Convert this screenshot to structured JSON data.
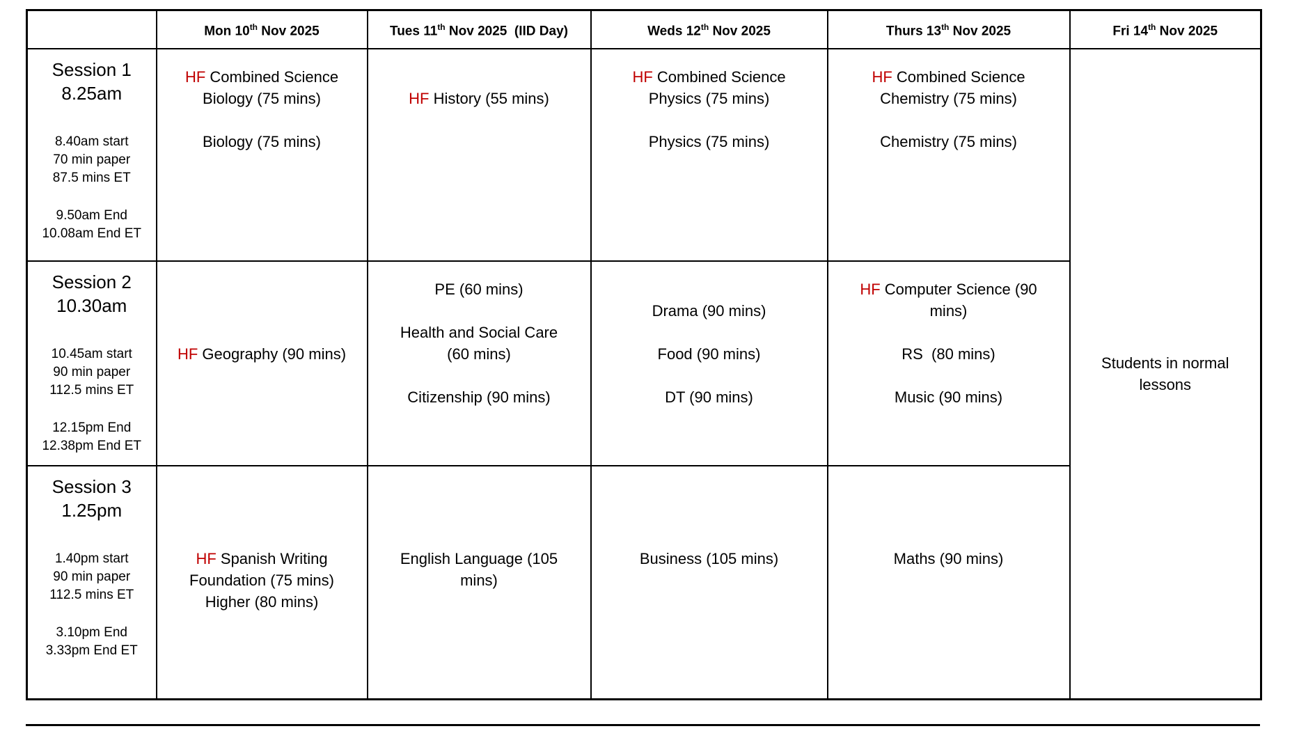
{
  "hf_color": "#C00000",
  "hf_label": "HF",
  "header": {
    "days": [
      {
        "key": "mon",
        "prefix": "Mon 10",
        "sup": "th",
        "suffix": " Nov 2025"
      },
      {
        "key": "tue",
        "prefix": "Tues 11",
        "sup": "th",
        "suffix": " Nov 2025  (IID Day)"
      },
      {
        "key": "wed",
        "prefix": "Weds 12",
        "sup": "th",
        "suffix": " Nov 2025"
      },
      {
        "key": "thu",
        "prefix": "Thurs 13",
        "sup": "th",
        "suffix": " Nov 2025"
      },
      {
        "key": "fri",
        "prefix": "Fri 14",
        "sup": "th",
        "suffix": " Nov 2025"
      }
    ]
  },
  "sessions": [
    {
      "name": "Session 1",
      "start_time": "8.25am",
      "details": [
        "8.40am start",
        "70 min paper",
        "87.5 mins ET"
      ],
      "end_details": [
        "9.50am End",
        "10.08am End ET"
      ],
      "exams": {
        "mon": [
          {
            "hf": true,
            "text": "Combined Science"
          },
          {
            "text": "Biology (75 mins)"
          },
          "",
          {
            "text": "Biology (75 mins)"
          }
        ],
        "tue": [
          "",
          {
            "hf": true,
            "text": "History (55 mins)"
          }
        ],
        "wed": [
          {
            "hf": true,
            "text": "Combined Science"
          },
          {
            "text": "Physics (75 mins)"
          },
          "",
          {
            "text": "Physics (75 mins)"
          }
        ],
        "thu": [
          {
            "hf": true,
            "text": "Combined Science"
          },
          {
            "text": "Chemistry (75 mins)"
          },
          "",
          {
            "text": "Chemistry (75 mins)"
          }
        ]
      }
    },
    {
      "name": "Session 2",
      "start_time": "10.30am",
      "details": [
        "10.45am start",
        "90 min paper",
        "112.5 mins ET"
      ],
      "end_details": [
        "12.15pm End",
        "12.38pm End ET"
      ],
      "exams": {
        "mon": [
          "",
          "",
          "",
          {
            "hf": true,
            "text": "Geography (90 mins)"
          }
        ],
        "tue": [
          {
            "text": "PE (60 mins)"
          },
          "",
          {
            "text": "Health and Social Care"
          },
          {
            "text": "(60 mins)"
          },
          "",
          {
            "text": "Citizenship (90 mins)"
          }
        ],
        "wed": [
          "",
          {
            "text": "Drama (90 mins)"
          },
          "",
          {
            "text": "Food (90 mins)"
          },
          "",
          {
            "text": "DT (90 mins)"
          }
        ],
        "thu": [
          {
            "hf": true,
            "text": "Computer Science (90"
          },
          {
            "text": "mins)"
          },
          "",
          {
            "text": "RS  (80 mins)"
          },
          "",
          {
            "text": "Music (90 mins)"
          }
        ]
      }
    },
    {
      "name": "Session 3",
      "start_time": "1.25pm",
      "details": [
        "1.40pm start",
        "90 min paper",
        "112.5 mins ET"
      ],
      "end_details": [
        "3.10pm End",
        "3.33pm End ET"
      ],
      "exams": {
        "mon": [
          "",
          "",
          "",
          {
            "hf": true,
            "text": "Spanish Writing"
          },
          {
            "text": "Foundation (75 mins)"
          },
          {
            "text": "Higher (80 mins)"
          }
        ],
        "tue": [
          "",
          "",
          "",
          {
            "text": "English Language (105"
          },
          {
            "text": "mins)"
          }
        ],
        "wed": [
          "",
          "",
          "",
          {
            "text": "Business (105 mins)"
          }
        ],
        "thu": [
          "",
          "",
          "",
          {
            "text": "Maths (90 mins)"
          }
        ]
      }
    }
  ],
  "friday_note": "Students in normal lessons"
}
